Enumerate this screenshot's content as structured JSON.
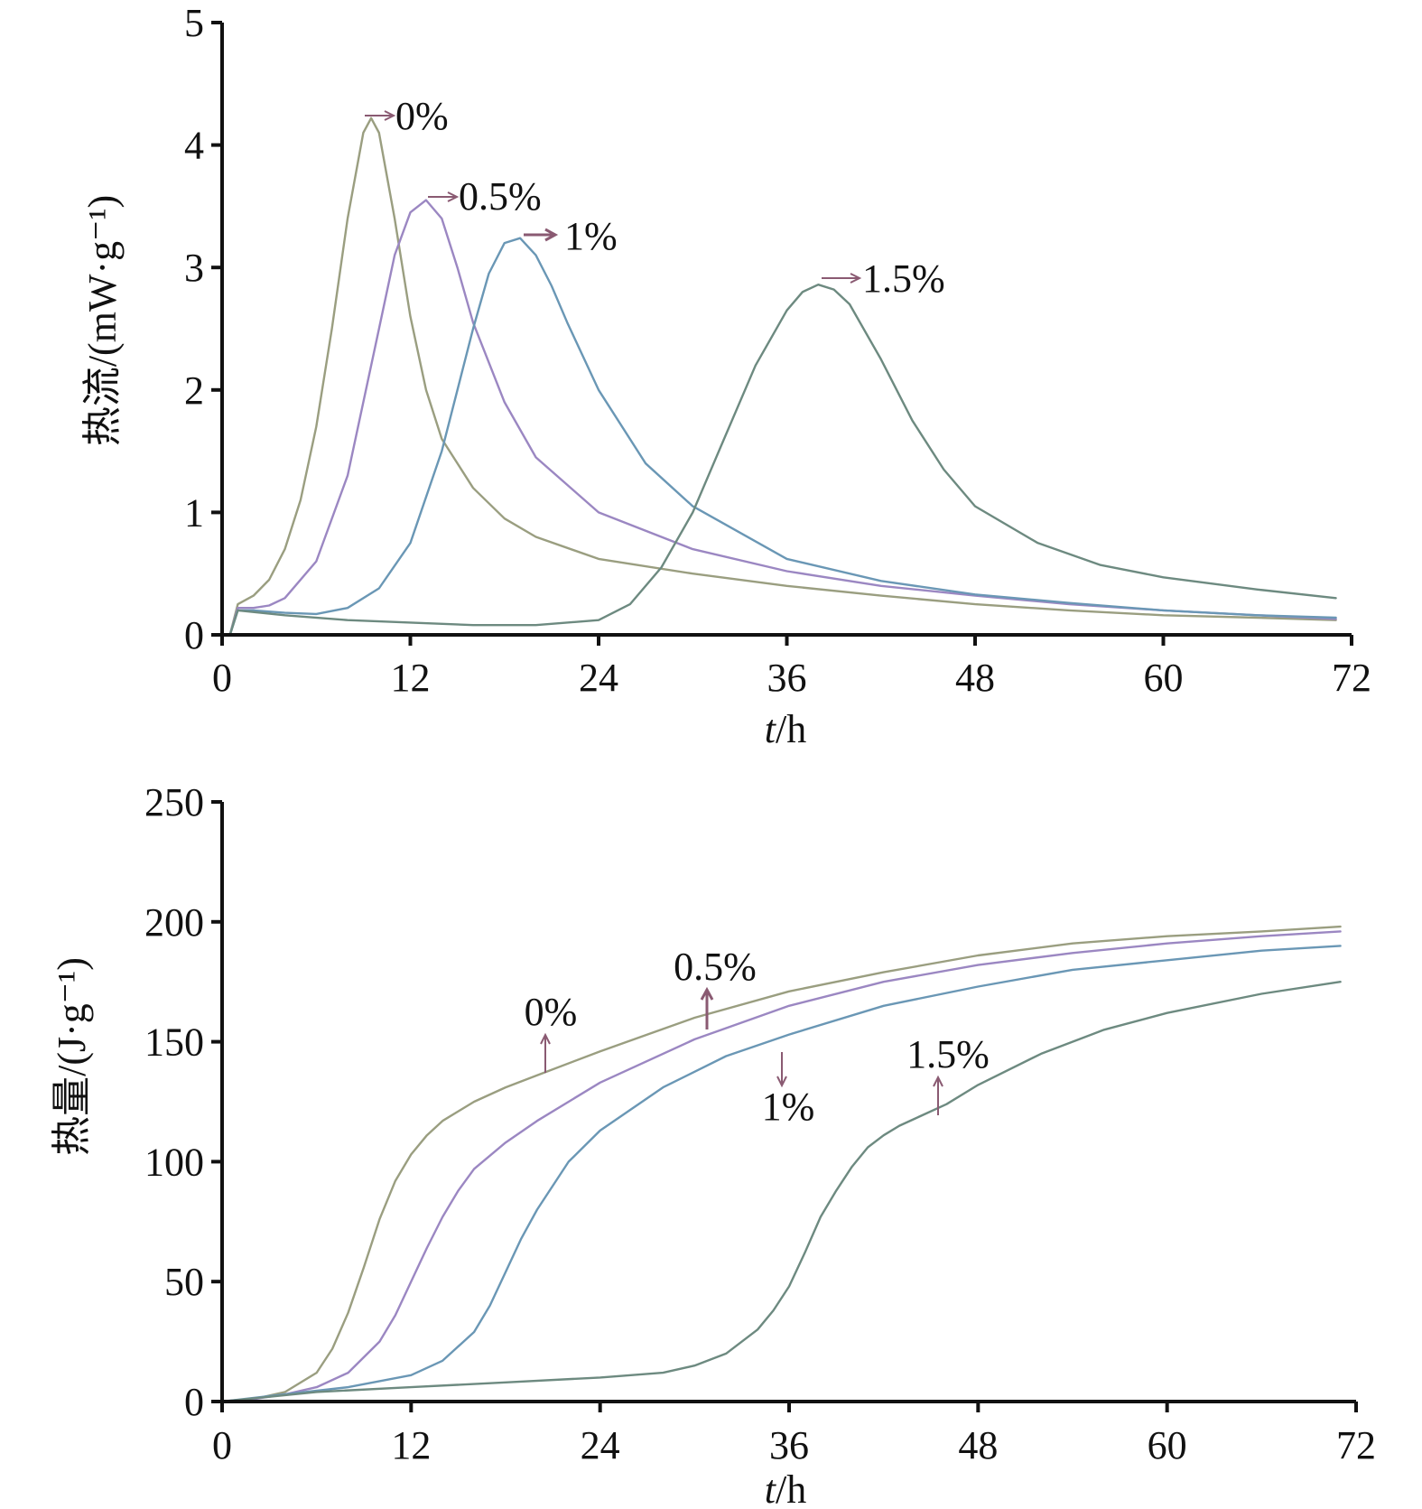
{
  "chart_data": [
    {
      "type": "line",
      "ylabel": "热流/(mW·g⁻¹)",
      "xlabel_var": "t",
      "xlabel_unit": "/h",
      "xlim": [
        0,
        72
      ],
      "ylim": [
        0,
        5
      ],
      "xticks": [
        "0",
        "12",
        "24",
        "36",
        "48",
        "60",
        "72"
      ],
      "yticks": [
        "0",
        "1",
        "2",
        "3",
        "4",
        "5"
      ],
      "grid": false,
      "series": [
        {
          "name": "0%",
          "color": "#9a9e80",
          "x": [
            0.5,
            1.0,
            2,
            3,
            4,
            5,
            6,
            7,
            8,
            9,
            9.5,
            10,
            11,
            12,
            13,
            14,
            16,
            18,
            20,
            24,
            30,
            36,
            42,
            48,
            54,
            60,
            66,
            71
          ],
          "y": [
            0.0,
            0.25,
            0.32,
            0.45,
            0.7,
            1.1,
            1.7,
            2.5,
            3.4,
            4.1,
            4.22,
            4.1,
            3.4,
            2.6,
            2.0,
            1.6,
            1.2,
            0.95,
            0.8,
            0.62,
            0.5,
            0.4,
            0.32,
            0.25,
            0.2,
            0.16,
            0.14,
            0.12
          ]
        },
        {
          "name": "0.5%",
          "color": "#9b87c2",
          "x": [
            0.5,
            1.0,
            2,
            3,
            4,
            6,
            8,
            10,
            11,
            12,
            13,
            14,
            15,
            16,
            18,
            20,
            24,
            30,
            36,
            42,
            48,
            54,
            60,
            66,
            71
          ],
          "y": [
            0.0,
            0.22,
            0.22,
            0.24,
            0.3,
            0.6,
            1.3,
            2.5,
            3.1,
            3.45,
            3.55,
            3.4,
            3.0,
            2.55,
            1.9,
            1.45,
            1.0,
            0.7,
            0.52,
            0.4,
            0.32,
            0.25,
            0.2,
            0.16,
            0.13
          ]
        },
        {
          "name": "1%",
          "color": "#6a97b5",
          "x": [
            0.5,
            1.0,
            2,
            4,
            6,
            8,
            10,
            12,
            14,
            16,
            17,
            18,
            19,
            20,
            21,
            22,
            24,
            27,
            30,
            36,
            42,
            48,
            54,
            60,
            66,
            71
          ],
          "y": [
            0.0,
            0.2,
            0.2,
            0.18,
            0.17,
            0.22,
            0.38,
            0.75,
            1.5,
            2.5,
            2.95,
            3.2,
            3.24,
            3.1,
            2.85,
            2.55,
            2.0,
            1.4,
            1.05,
            0.62,
            0.44,
            0.33,
            0.26,
            0.2,
            0.16,
            0.14
          ]
        },
        {
          "name": "1.5%",
          "color": "#6d8a80",
          "x": [
            0.5,
            1.0,
            4,
            8,
            12,
            16,
            20,
            24,
            26,
            28,
            30,
            32,
            34,
            36,
            37,
            38,
            39,
            40,
            42,
            44,
            46,
            48,
            52,
            56,
            60,
            66,
            71
          ],
          "y": [
            0.0,
            0.2,
            0.16,
            0.12,
            0.1,
            0.08,
            0.08,
            0.12,
            0.25,
            0.55,
            1.0,
            1.6,
            2.2,
            2.65,
            2.8,
            2.86,
            2.82,
            2.7,
            2.25,
            1.75,
            1.35,
            1.05,
            0.75,
            0.57,
            0.47,
            0.37,
            0.3
          ]
        }
      ],
      "annotations": [
        {
          "text": "0%"
        },
        {
          "text": "0.5%"
        },
        {
          "text": "1%"
        },
        {
          "text": "1.5%"
        }
      ]
    },
    {
      "type": "line",
      "ylabel": "热量/(J·g⁻¹)",
      "xlabel_var": "t",
      "xlabel_unit": "/h",
      "xlim": [
        0,
        72
      ],
      "ylim": [
        0,
        250
      ],
      "xticks": [
        "0",
        "12",
        "24",
        "36",
        "48",
        "60",
        "72"
      ],
      "yticks": [
        "0",
        "50",
        "100",
        "150",
        "200",
        "250"
      ],
      "grid": false,
      "series": [
        {
          "name": "0%",
          "color": "#9a9e80",
          "x": [
            0,
            2,
            4,
            6,
            7,
            8,
            9,
            10,
            11,
            12,
            13,
            14,
            16,
            18,
            20,
            24,
            30,
            36,
            42,
            48,
            54,
            60,
            66,
            71
          ],
          "y": [
            0,
            1,
            4,
            12,
            22,
            37,
            56,
            76,
            92,
            103,
            111,
            117,
            125,
            131,
            136,
            146,
            160,
            171,
            179,
            186,
            191,
            194,
            196,
            198
          ]
        },
        {
          "name": "0.5%",
          "color": "#9b87c2",
          "x": [
            0,
            2,
            4,
            6,
            8,
            10,
            11,
            12,
            13,
            14,
            15,
            16,
            18,
            20,
            24,
            30,
            36,
            42,
            48,
            54,
            60,
            66,
            71
          ],
          "y": [
            0,
            1,
            3,
            6,
            12,
            25,
            36,
            50,
            64,
            77,
            88,
            97,
            108,
            117,
            133,
            151,
            165,
            175,
            182,
            187,
            191,
            194,
            196
          ]
        },
        {
          "name": "1%",
          "color": "#6a97b5",
          "x": [
            0,
            4,
            8,
            12,
            14,
            16,
            17,
            18,
            19,
            20,
            22,
            24,
            28,
            32,
            36,
            42,
            48,
            54,
            60,
            66,
            71
          ],
          "y": [
            0,
            3,
            6,
            11,
            17,
            29,
            40,
            54,
            68,
            80,
            100,
            113,
            131,
            144,
            153,
            165,
            173,
            180,
            184,
            188,
            190
          ]
        },
        {
          "name": "1.5%",
          "color": "#6d8a80",
          "x": [
            0,
            6,
            12,
            18,
            24,
            28,
            30,
            32,
            34,
            35,
            36,
            37,
            38,
            39,
            40,
            41,
            42,
            43,
            44,
            46,
            48,
            52,
            56,
            60,
            66,
            71
          ],
          "y": [
            0,
            4,
            6,
            8,
            10,
            12,
            15,
            20,
            30,
            38,
            48,
            62,
            77,
            88,
            98,
            106,
            111,
            115,
            118,
            124,
            132,
            145,
            155,
            162,
            170,
            175
          ]
        }
      ],
      "annotations": [
        {
          "text": "0%"
        },
        {
          "text": "0.5%"
        },
        {
          "text": "1%"
        },
        {
          "text": "1.5%"
        }
      ]
    }
  ],
  "annotation_color": "#8a5a72"
}
